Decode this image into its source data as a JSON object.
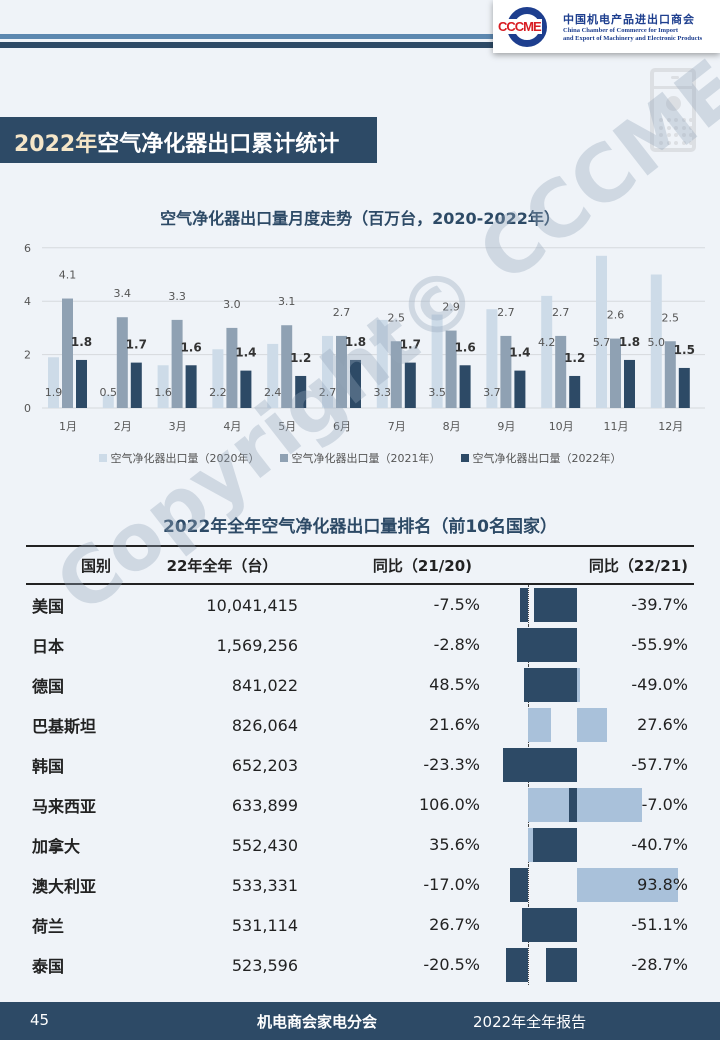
{
  "header": {
    "logo_mark": "CCCME",
    "logo_cn": "中国机电产品进出口商会",
    "logo_en_1": "China Chamber of Commerce for Import",
    "logo_en_2": "and Export of Machinery and Electronic Products"
  },
  "section_title_year": "2022年",
  "section_title_rest": "空气净化器出口累计统计",
  "chart_data": {
    "type": "bar",
    "title": "空气净化器出口量月度走势（百万台，2020-2022年）",
    "categories": [
      "1月",
      "2月",
      "3月",
      "4月",
      "5月",
      "6月",
      "7月",
      "8月",
      "9月",
      "10月",
      "11月",
      "12月"
    ],
    "yticks": [
      "0",
      "2",
      "4",
      "6"
    ],
    "ylim": [
      0,
      6
    ],
    "grid": true,
    "legend": "bottom",
    "series": [
      {
        "name": "空气净化器出口量（2020年）",
        "color": "#cddbe8",
        "values": [
          1.9,
          0.5,
          1.6,
          2.2,
          2.4,
          2.7,
          3.3,
          3.5,
          3.7,
          4.2,
          5.7,
          5.0
        ],
        "labels": [
          "1.9",
          "0.5",
          "1.6",
          "2.2",
          "2.4",
          "2.7",
          "3.3",
          "3.5",
          "3.7",
          "4.2",
          "5.7",
          "5.0"
        ]
      },
      {
        "name": "空气净化器出口量（2021年）",
        "color": "#8fa1b3",
        "values": [
          4.1,
          3.4,
          3.3,
          3.0,
          3.1,
          2.7,
          2.5,
          2.9,
          2.7,
          2.7,
          2.6,
          2.5
        ],
        "labels": [
          "4.1",
          "3.4",
          "3.3",
          "3.0",
          "3.1",
          "2.7",
          "2.5",
          "2.9",
          "2.7",
          "2.7",
          "2.6",
          "2.5"
        ]
      },
      {
        "name": "空气净化器出口量（2022年）",
        "color": "#2d4a66",
        "values": [
          1.8,
          1.7,
          1.6,
          1.4,
          1.2,
          1.8,
          1.7,
          1.6,
          1.4,
          1.2,
          1.8,
          1.5
        ],
        "labels": [
          "1.8",
          "1.7",
          "1.6",
          "1.4",
          "1.2",
          "1.8",
          "1.7",
          "1.6",
          "1.4",
          "1.2",
          "1.8",
          "1.5"
        ]
      }
    ]
  },
  "table": {
    "title": "2022年全年空气净化器出口量排名（前10名国家）",
    "headers": [
      "国别",
      "22年全年（台）",
      "同比（21/20)",
      "同比（22/21)"
    ],
    "rows": [
      {
        "country": "美国",
        "qty": "10,041,415",
        "yoy1": "-7.5%",
        "v1": -7.5,
        "yoy2": "-39.7%",
        "v2": -39.7
      },
      {
        "country": "日本",
        "qty": "1,569,256",
        "yoy1": "-2.8%",
        "v1": -2.8,
        "yoy2": "-55.9%",
        "v2": -55.9
      },
      {
        "country": "德国",
        "qty": "841,022",
        "yoy1": "48.5%",
        "v1": 48.5,
        "yoy2": "-49.0%",
        "v2": -49.0
      },
      {
        "country": "巴基斯坦",
        "qty": "826,064",
        "yoy1": "21.6%",
        "v1": 21.6,
        "yoy2": "27.6%",
        "v2": 27.6
      },
      {
        "country": "韩国",
        "qty": "652,203",
        "yoy1": "-23.3%",
        "v1": -23.3,
        "yoy2": "-57.7%",
        "v2": -57.7
      },
      {
        "country": "马来西亚",
        "qty": "633,899",
        "yoy1": "106.0%",
        "v1": 106.0,
        "yoy2": "-7.0%",
        "v2": -7.0
      },
      {
        "country": "加拿大",
        "qty": "552,430",
        "yoy1": "35.6%",
        "v1": 35.6,
        "yoy2": "-40.7%",
        "v2": -40.7
      },
      {
        "country": "澳大利亚",
        "qty": "533,331",
        "yoy1": "-17.0%",
        "v1": -17.0,
        "yoy2": "93.8%",
        "v2": 93.8
      },
      {
        "country": "荷兰",
        "qty": "531,114",
        "yoy1": "26.7%",
        "v1": 26.7,
        "yoy2": "-51.1%",
        "v2": -51.1
      },
      {
        "country": "泰国",
        "qty": "523,596",
        "yoy1": "-20.5%",
        "v1": -20.5,
        "yoy2": "-28.7%",
        "v2": -28.7
      }
    ],
    "neg_color": "#2d4a66",
    "pos_color": "#a9c1da"
  },
  "watermark": "Copyright© CCCME",
  "footer": {
    "page": "45",
    "org": "机电商会家电分会",
    "report": "2022年全年报告"
  }
}
